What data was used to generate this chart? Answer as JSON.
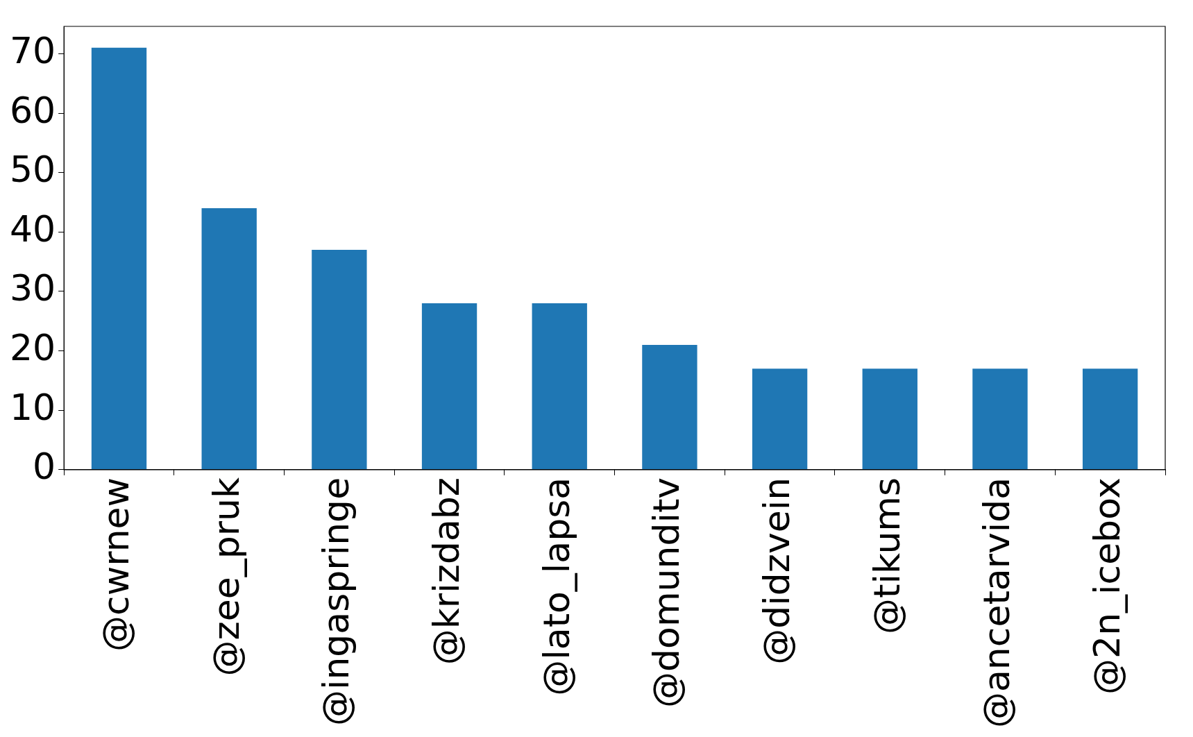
{
  "chart_data": {
    "type": "bar",
    "categories": [
      "@cwrnew",
      "@zee_pruk",
      "@ingaspringe",
      "@krizdabz",
      "@lato_lapsa",
      "@domunditv",
      "@didzvein",
      "@tikums",
      "@ancetarvida",
      "@2n_icebox"
    ],
    "values": [
      71,
      44,
      37,
      28,
      28,
      21,
      17,
      17,
      17,
      17
    ],
    "color": "#1f77b4",
    "ylim": [
      0,
      74.6
    ],
    "yticks": [
      0,
      10,
      20,
      30,
      40,
      50,
      60,
      70
    ]
  }
}
